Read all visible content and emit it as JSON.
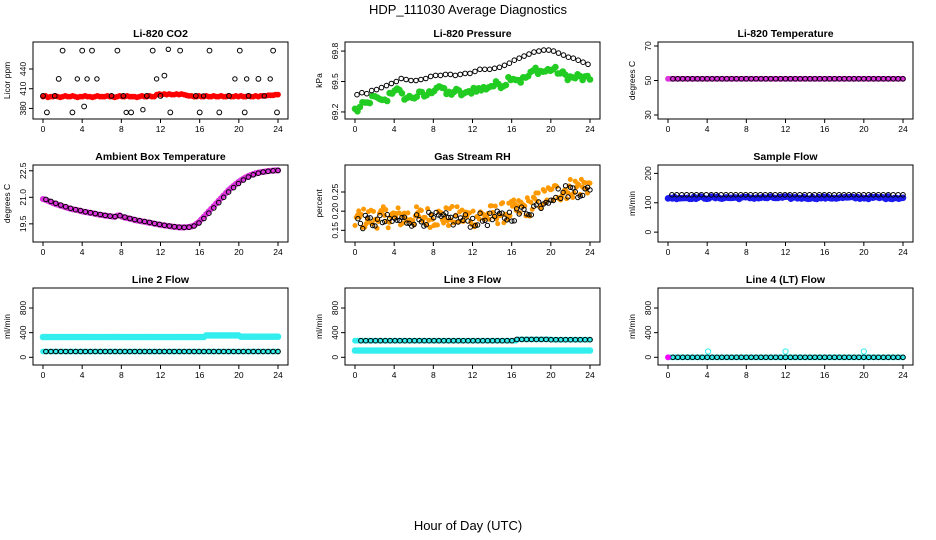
{
  "title": "HDP_111030  Average Diagnostics",
  "xlabel": "Hour of Day (UTC)",
  "chart_data": [
    {
      "type": "scatter",
      "title": "Li-820 CO2",
      "ylabel": "Licor ppm",
      "xlim": [
        0,
        24
      ],
      "ylim": [
        370,
        475
      ],
      "xticks": [
        0,
        4,
        8,
        12,
        16,
        20,
        24
      ],
      "yticks": [
        380,
        410,
        440
      ],
      "ytick_labels": [
        "380",
        "410",
        "440"
      ],
      "series": [
        {
          "color": "#ff0000",
          "size": 2.6,
          "x_range": [
            0,
            24
          ],
          "n": 96,
          "y": [
            398,
            399,
            397,
            398,
            398,
            399,
            398,
            397,
            398,
            399,
            398,
            398,
            399,
            398,
            397,
            398,
            398,
            399,
            398,
            398,
            397,
            398,
            399,
            398,
            398,
            398,
            399,
            398,
            398,
            397,
            398,
            399,
            398,
            398,
            399,
            398,
            398,
            398,
            397,
            398,
            399,
            398,
            398,
            399,
            398,
            398,
            401,
            402,
            401,
            402,
            401,
            402,
            401,
            401,
            402,
            401,
            402,
            401,
            400,
            399,
            399,
            398,
            398,
            399,
            398,
            398,
            399,
            398,
            398,
            399,
            398,
            398,
            399,
            398,
            398,
            399,
            398,
            398,
            399,
            398,
            399,
            398,
            398,
            399,
            398,
            398,
            399,
            398,
            399,
            399,
            399,
            400,
            400,
            400,
            401,
            401
          ]
        },
        {
          "color": "#000000",
          "size": 2.4,
          "hollow": true,
          "x": [
            0,
            0.4,
            1.2,
            1.6,
            2.0,
            3.0,
            4.0,
            4.2,
            5.0,
            7.0,
            7.6,
            8.2,
            9.0,
            10.6,
            11.2,
            12.0,
            12.4,
            13.0,
            14.0,
            15.6,
            16.0,
            17.0,
            18.0,
            19.0,
            20.1,
            20.6,
            21.0,
            22.0,
            23.5,
            23.9
          ],
          "y": [
            399,
            374,
            399,
            425,
            468,
            374,
            468,
            383,
            468,
            399,
            468,
            399,
            374,
            399,
            468,
            399,
            430,
            374,
            468,
            399,
            374,
            468,
            374,
            399,
            468,
            374,
            399,
            425,
            468,
            374
          ]
        },
        {
          "color": "#000000",
          "size": 2.2,
          "hollow": true,
          "x": [
            3.5,
            4.5,
            5.5,
            8.5,
            10.2,
            11.6,
            12.8,
            16.4,
            19.6,
            20.8,
            22.6,
            23.2
          ],
          "y": [
            425,
            425,
            425,
            374,
            378,
            425,
            470,
            399,
            425,
            425,
            399,
            425
          ]
        }
      ]
    },
    {
      "type": "scatter",
      "title": "Li-820 Pressure",
      "ylabel": "kPa",
      "xlim": [
        0,
        24
      ],
      "ylim": [
        69.17,
        69.85
      ],
      "xticks": [
        0,
        4,
        8,
        12,
        16,
        20,
        24
      ],
      "yticks": [
        69.2,
        69.5,
        69.8
      ],
      "ytick_labels": [
        "69.2",
        "69.5",
        "69.8"
      ],
      "series": [
        {
          "color": "#22cc22",
          "size": 3.0,
          "jitter": 0.035,
          "x_range": [
            0,
            24
          ],
          "n": 96,
          "y": [
            69.22,
            69.22,
            69.24,
            69.26,
            69.28,
            69.28,
            69.31,
            69.33,
            69.34,
            69.32,
            69.31,
            69.33,
            69.3,
            69.33,
            69.38,
            69.4,
            69.43,
            69.41,
            69.39,
            69.36,
            69.35,
            69.34,
            69.34,
            69.35,
            69.35,
            69.36,
            69.37,
            69.37,
            69.36,
            69.37,
            69.38,
            69.41,
            69.43,
            69.45,
            69.46,
            69.44,
            69.4,
            69.38,
            69.38,
            69.39,
            69.4,
            69.4,
            69.39,
            69.38,
            69.38,
            69.37,
            69.39,
            69.41,
            69.43,
            69.43,
            69.42,
            69.42,
            69.43,
            69.44,
            69.45,
            69.46,
            69.46,
            69.47,
            69.48,
            69.47,
            69.47,
            69.49,
            69.53,
            69.55,
            69.54,
            69.53,
            69.52,
            69.51,
            69.52,
            69.54,
            69.55,
            69.57,
            69.6,
            69.62,
            69.61,
            69.6,
            69.6,
            69.6,
            69.61,
            69.62,
            69.62,
            69.61,
            69.6,
            69.58,
            69.57,
            69.56,
            69.55,
            69.54,
            69.53,
            69.54,
            69.55,
            69.54,
            69.53,
            69.53,
            69.52,
            69.52
          ]
        },
        {
          "color": "#000000",
          "size": 2.3,
          "hollow": true,
          "x_range": [
            0.2,
            23.8
          ],
          "n": 48,
          "y": [
            69.37,
            69.39,
            69.38,
            69.41,
            69.42,
            69.44,
            69.46,
            69.48,
            69.5,
            69.53,
            69.52,
            69.51,
            69.51,
            69.52,
            69.53,
            69.55,
            69.56,
            69.56,
            69.57,
            69.57,
            69.56,
            69.57,
            69.58,
            69.58,
            69.6,
            69.62,
            69.62,
            69.62,
            69.63,
            69.64,
            69.66,
            69.68,
            69.71,
            69.73,
            69.75,
            69.77,
            69.79,
            69.8,
            69.81,
            69.81,
            69.8,
            69.78,
            69.76,
            69.74,
            69.73,
            69.71,
            69.69,
            69.67
          ]
        }
      ]
    },
    {
      "type": "scatter",
      "title": "Li-820 Temperature",
      "ylabel": "degrees C",
      "xlim": [
        0,
        24
      ],
      "ylim": [
        30,
        70
      ],
      "xticks": [
        0,
        4,
        8,
        12,
        16,
        20,
        24
      ],
      "yticks": [
        30,
        50,
        70
      ],
      "ytick_labels": [
        "30",
        "50",
        "70"
      ],
      "series": [
        {
          "color": "#dd33dd",
          "size": 2.6,
          "x_range": [
            0,
            24
          ],
          "n": 96,
          "constant": 51
        },
        {
          "color": "#000000",
          "size": 2.3,
          "hollow": true,
          "x_range": [
            0.5,
            24
          ],
          "n": 48,
          "constant": 51
        }
      ]
    },
    {
      "type": "scatter",
      "title": "Ambient Box Temperature",
      "ylabel": "degrees C",
      "xlim": [
        0,
        24
      ],
      "ylim": [
        18.7,
        22.6
      ],
      "xticks": [
        0,
        4,
        8,
        12,
        16,
        20,
        24
      ],
      "yticks": [
        19.5,
        21.0,
        22.5
      ],
      "ytick_labels": [
        "19.5",
        "21.0",
        "22.5"
      ],
      "series": [
        {
          "color": "#dd33dd",
          "size": 2.8,
          "x_range": [
            0,
            24
          ],
          "n": 96,
          "y": [
            20.9,
            20.86,
            20.8,
            20.74,
            20.68,
            20.62,
            20.58,
            20.53,
            20.49,
            20.44,
            20.4,
            20.36,
            20.32,
            20.3,
            20.27,
            20.24,
            20.2,
            20.17,
            20.15,
            20.12,
            20.1,
            20.07,
            20.04,
            20.01,
            19.99,
            19.97,
            19.95,
            19.93,
            19.91,
            19.9,
            19.96,
            19.98,
            19.9,
            19.86,
            19.83,
            19.79,
            19.76,
            19.72,
            19.69,
            19.67,
            19.64,
            19.62,
            19.59,
            19.56,
            19.54,
            19.51,
            19.48,
            19.46,
            19.43,
            19.41,
            19.39,
            19.37,
            19.35,
            19.33,
            19.32,
            19.3,
            19.3,
            19.3,
            19.31,
            19.32,
            19.35,
            19.4,
            19.5,
            19.6,
            19.75,
            19.9,
            20.05,
            20.2,
            20.35,
            20.5,
            20.65,
            20.8,
            20.95,
            21.1,
            21.25,
            21.4,
            21.52,
            21.64,
            21.75,
            21.86,
            21.96,
            22.05,
            22.13,
            22.2,
            22.26,
            22.31,
            22.35,
            22.39,
            22.42,
            22.44,
            22.46,
            22.48,
            22.5,
            22.51,
            22.52,
            22.52
          ]
        },
        {
          "color": "#000000",
          "size": 2.3,
          "hollow": true,
          "x_range": [
            0.3,
            24
          ],
          "n": 48,
          "y": [
            20.88,
            20.77,
            20.66,
            20.56,
            20.47,
            20.38,
            20.3,
            20.25,
            20.18,
            20.13,
            20.08,
            20.03,
            19.98,
            19.94,
            19.91,
            19.96,
            19.88,
            19.81,
            19.74,
            19.68,
            19.63,
            19.58,
            19.52,
            19.47,
            19.42,
            19.38,
            19.34,
            19.31,
            19.3,
            19.31,
            19.38,
            19.55,
            19.8,
            20.1,
            20.4,
            20.7,
            21.0,
            21.3,
            21.55,
            21.78,
            21.98,
            22.14,
            22.27,
            22.36,
            22.43,
            22.47,
            22.5,
            22.52
          ]
        }
      ]
    },
    {
      "type": "scatter",
      "title": "Gas Stream RH",
      "ylabel": "percent",
      "xlim": [
        0,
        24
      ],
      "ylim": [
        0.13,
        0.31
      ],
      "xticks": [
        0,
        4,
        8,
        12,
        16,
        20,
        24
      ],
      "yticks": [
        0.15,
        0.2,
        0.25
      ],
      "ytick_labels": [
        "0.15",
        "0.20",
        "0.25"
      ],
      "series": [
        {
          "color": "#ff9900",
          "size": 2.2,
          "jitter": 0.028,
          "x_range": [
            0,
            24
          ],
          "n": 192,
          "trend": [
            [
              0,
              0.18
            ],
            [
              4,
              0.185
            ],
            [
              8,
              0.185
            ],
            [
              12,
              0.185
            ],
            [
              14,
              0.19
            ],
            [
              16,
              0.2
            ],
            [
              18,
              0.215
            ],
            [
              20,
              0.245
            ],
            [
              22,
              0.26
            ],
            [
              24,
              0.27
            ]
          ]
        },
        {
          "color": "#000000",
          "size": 2.2,
          "hollow": true,
          "jitter": 0.018,
          "x_range": [
            0.3,
            24
          ],
          "n": 96,
          "trend": [
            [
              0,
              0.17
            ],
            [
              4,
              0.175
            ],
            [
              8,
              0.18
            ],
            [
              12,
              0.175
            ],
            [
              14,
              0.18
            ],
            [
              16,
              0.19
            ],
            [
              18,
              0.205
            ],
            [
              20,
              0.24
            ],
            [
              22,
              0.255
            ],
            [
              24,
              0.25
            ]
          ]
        }
      ]
    },
    {
      "type": "scatter",
      "title": "Sample Flow",
      "ylabel": "ml/min",
      "xlim": [
        0,
        24
      ],
      "ylim": [
        -20,
        215
      ],
      "xticks": [
        0,
        4,
        8,
        12,
        16,
        20,
        24
      ],
      "yticks": [
        0,
        100,
        200
      ],
      "ytick_labels": [
        "0",
        "100",
        "200"
      ],
      "series": [
        {
          "color": "#1a1aee",
          "size": 3.0,
          "jitter": 4,
          "x_range": [
            0,
            24
          ],
          "n": 110,
          "constant": 117
        },
        {
          "color": "#000000",
          "size": 2.3,
          "hollow": true,
          "x_range": [
            0.4,
            24
          ],
          "n": 48,
          "constant": 127
        }
      ]
    },
    {
      "type": "scatter",
      "title": "Line 2 Flow",
      "ylabel": "ml/min",
      "xlim": [
        0,
        24
      ],
      "ylim": [
        -60,
        1060
      ],
      "xticks": [
        0,
        4,
        8,
        12,
        16,
        20,
        24
      ],
      "yticks": [
        0,
        400,
        800
      ],
      "ytick_labels": [
        "0",
        "400",
        "800"
      ],
      "series": [
        {
          "color": "#33eeee",
          "size": 3.0,
          "x_range": [
            0,
            24
          ],
          "n": 96,
          "y_segments": [
            [
              0,
              16.5,
              330
            ],
            [
              16.5,
              20,
              355
            ],
            [
              20,
              24,
              335
            ]
          ]
        },
        {
          "color": "#33eeee",
          "size": 2.6,
          "x_range": [
            0,
            24
          ],
          "n": 96,
          "constant": 95
        },
        {
          "color": "#000000",
          "size": 2.3,
          "hollow": true,
          "x_range": [
            0.3,
            24
          ],
          "n": 48,
          "constant": 95
        }
      ]
    },
    {
      "type": "scatter",
      "title": "Line 3 Flow",
      "ylabel": "ml/min",
      "xlim": [
        0,
        24
      ],
      "ylim": [
        -60,
        1060
      ],
      "xticks": [
        0,
        4,
        8,
        12,
        16,
        20,
        24
      ],
      "yticks": [
        0,
        400,
        800
      ],
      "ytick_labels": [
        "0",
        "400",
        "800"
      ],
      "series": [
        {
          "color": "#33eeee",
          "size": 3.0,
          "x_range": [
            0,
            24
          ],
          "n": 96,
          "constant": 110
        },
        {
          "color": "#33eeee",
          "size": 2.6,
          "x_range": [
            0,
            24
          ],
          "n": 96,
          "y_segments": [
            [
              0,
              16.5,
              270
            ],
            [
              16.5,
              20,
              290
            ],
            [
              20,
              24,
              285
            ]
          ]
        },
        {
          "color": "#000000",
          "size": 2.3,
          "hollow": true,
          "x_range": [
            0.6,
            24
          ],
          "n": 48,
          "y_segments": [
            [
              0,
              16.5,
              270
            ],
            [
              16.5,
              20,
              290
            ],
            [
              20,
              24,
              285
            ]
          ]
        }
      ]
    },
    {
      "type": "scatter",
      "title": "Line 4 (LT) Flow",
      "ylabel": "ml/min",
      "xlim": [
        0,
        24
      ],
      "ylim": [
        -60,
        1060
      ],
      "xticks": [
        0,
        4,
        8,
        12,
        16,
        20,
        24
      ],
      "yticks": [
        0,
        400,
        800
      ],
      "ytick_labels": [
        "0",
        "400",
        "800"
      ],
      "series": [
        {
          "color": "#33eeee",
          "size": 2.6,
          "x_range": [
            0,
            24
          ],
          "n": 96,
          "constant": 0
        },
        {
          "color": "#33eeee",
          "size": 2.6,
          "hollow": true,
          "x": [
            4.1,
            12.0,
            20.0
          ],
          "y": [
            95,
            95,
            95
          ]
        },
        {
          "color": "#000000",
          "size": 2.3,
          "hollow": true,
          "x_range": [
            0.5,
            24
          ],
          "n": 48,
          "constant": 0
        },
        {
          "color": "#ff00ff",
          "size": 2.6,
          "x": [
            0
          ],
          "y": [
            0
          ]
        }
      ]
    }
  ]
}
